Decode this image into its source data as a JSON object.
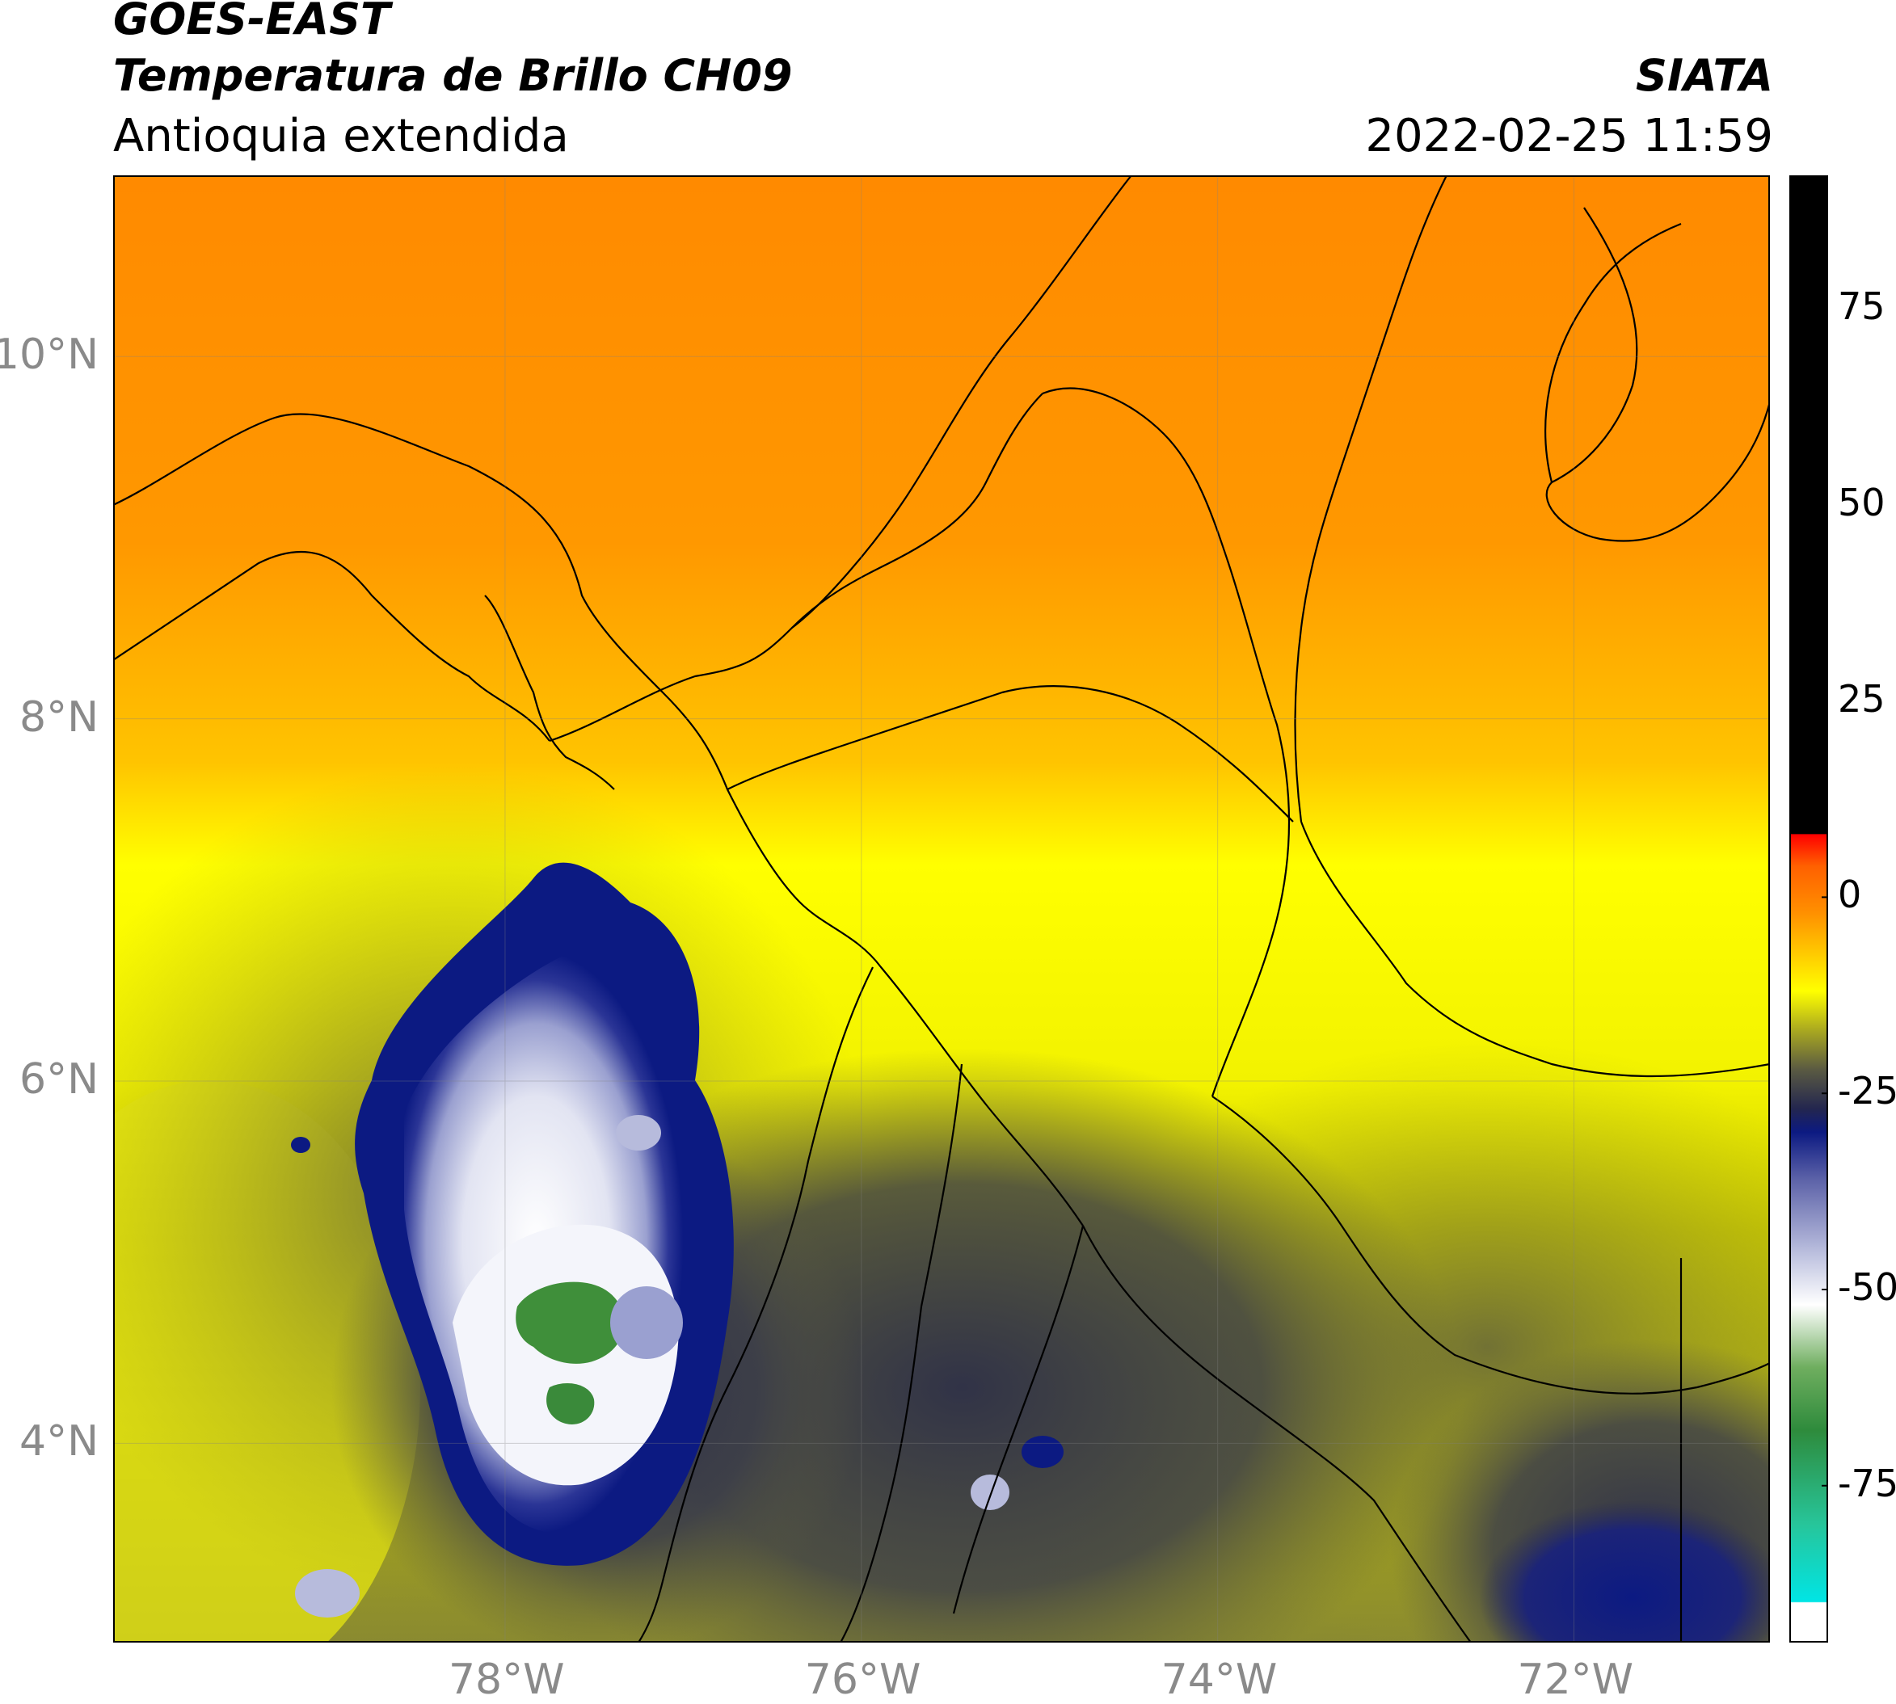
{
  "header": {
    "satellite": "GOES-EAST",
    "product": "Temperatura de Brillo CH09",
    "region": "Antioquia extendida",
    "agency": "SIATA",
    "datetime": "2022-02-25 11:59"
  },
  "map": {
    "lon_range": [
      -80.2,
      -70.9
    ],
    "lat_range": [
      2.9,
      11.0
    ],
    "lat_ticks": [
      {
        "value": 10,
        "label": "10°N"
      },
      {
        "value": 8,
        "label": "8°N"
      },
      {
        "value": 6,
        "label": "6°N"
      },
      {
        "value": 4,
        "label": "4°N"
      }
    ],
    "lon_ticks": [
      {
        "value": -78,
        "label": "78°W"
      },
      {
        "value": -76,
        "label": "76°W"
      },
      {
        "value": -74,
        "label": "74°W"
      },
      {
        "value": -72,
        "label": "72°W"
      }
    ],
    "gridlines": true
  },
  "colorbar": {
    "range": [
      -95,
      92
    ],
    "ticks": [
      {
        "value": 75,
        "label": "75"
      },
      {
        "value": 50,
        "label": "50"
      },
      {
        "value": 25,
        "label": "25"
      },
      {
        "value": 0,
        "label": "0"
      },
      {
        "value": -25,
        "label": "-25"
      },
      {
        "value": -50,
        "label": "-50"
      },
      {
        "value": -75,
        "label": "-75"
      }
    ],
    "stops": [
      {
        "value": -95,
        "color": "#ffffff"
      },
      {
        "value": -90,
        "color": "#ffffff"
      },
      {
        "value": -89.9,
        "color": "#00e5e5"
      },
      {
        "value": -80,
        "color": "#27c59a"
      },
      {
        "value": -68,
        "color": "#2e8b3c"
      },
      {
        "value": -60,
        "color": "#6fae5f"
      },
      {
        "value": -52,
        "color": "#ffffff"
      },
      {
        "value": -45,
        "color": "#b7bbdc"
      },
      {
        "value": -36,
        "color": "#5c62a8"
      },
      {
        "value": -30,
        "color": "#0c1a82"
      },
      {
        "value": -27,
        "color": "#23264f"
      },
      {
        "value": -22,
        "color": "#5a5a42"
      },
      {
        "value": -17,
        "color": "#a9a820"
      },
      {
        "value": -12,
        "color": "#ffff00"
      },
      {
        "value": -2,
        "color": "#ff9000"
      },
      {
        "value": 4,
        "color": "#ff6000"
      },
      {
        "value": 8,
        "color": "#ff0000"
      },
      {
        "value": 8.1,
        "color": "#000000"
      },
      {
        "value": 92,
        "color": "#000000"
      }
    ]
  }
}
